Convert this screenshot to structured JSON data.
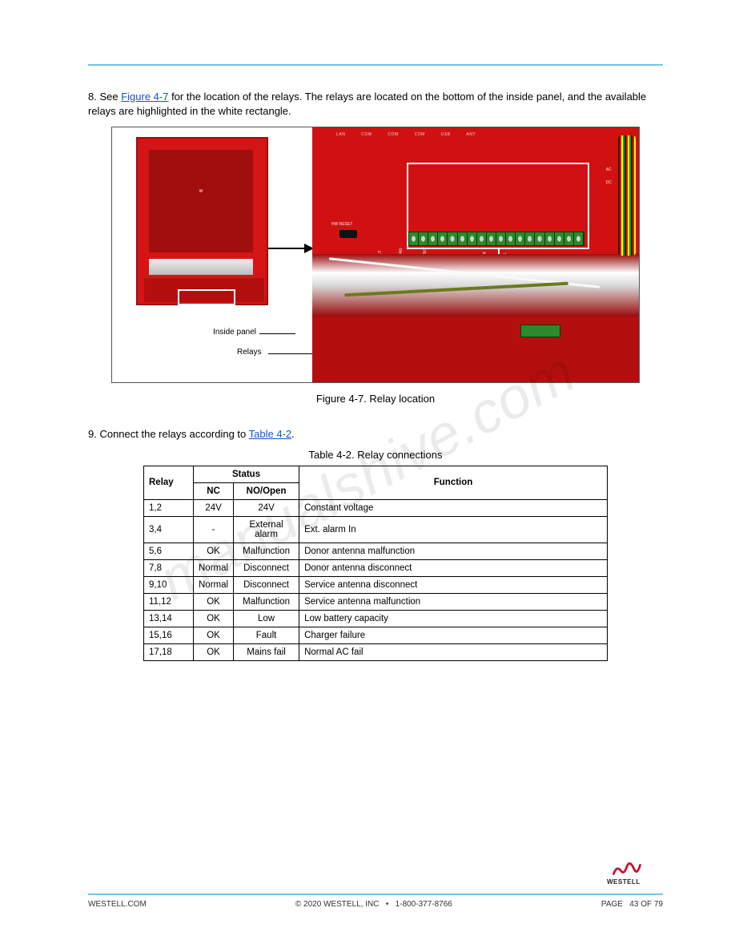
{
  "intro": {
    "pre": "8.  See  ",
    "figref": "Figure  4-7",
    "post": "  for  the  location  of  the  relays.  The  relays  are  located  on  the  bottom  of  the  inside  panel,  and  the  available  relays  are  highlighted  in  the  white  rectangle."
  },
  "annotation": {
    "inside_panel": "Inside panel",
    "relays": "Relays"
  },
  "figure": {
    "panel_top_ports": [
      "LAN",
      "COM",
      "COM",
      "COM",
      "USB",
      "ANT"
    ],
    "reset_label": "HW RESET",
    "reset_sub": "SW",
    "terminal_labels": [
      "ANT FAIL",
      "SYS FAULT",
      "DONOR FAIL",
      "DONOR OUT",
      "ANT OUT",
      "ANT OUT",
      "BATT LOW",
      "BATT FAIL",
      "AC FAIL"
    ],
    "right_col": [
      "AC",
      "DC"
    ],
    "caption": "Figure 4-7. Relay location"
  },
  "para": {
    "pre": "9.  Connect  the  relays  according  to  ",
    "tref": "Table  4-2",
    "post": "."
  },
  "table": {
    "caption": "Table 4-2. Relay connections",
    "head": {
      "relay": "Relay",
      "status_group": "Status",
      "statusA": "NC",
      "statusB": "NO/Open",
      "func": "Function"
    },
    "rows": [
      {
        "relay": "1,2",
        "statusA": "24V",
        "statusB": "24V",
        "func": "Constant voltage"
      },
      {
        "relay": "3,4",
        "statusA": "-",
        "statusB": "External alarm",
        "func": "Ext. alarm In"
      },
      {
        "relay": "5,6",
        "statusA": "OK",
        "statusB": "Malfunction",
        "func": "Donor antenna malfunction"
      },
      {
        "relay": "7,8",
        "statusA": "Normal",
        "statusB": "Disconnect",
        "func": "Donor antenna disconnect"
      },
      {
        "relay": "9,10",
        "statusA": "Normal",
        "statusB": "Disconnect",
        "func": "Service antenna disconnect"
      },
      {
        "relay": "11,12",
        "statusA": "OK",
        "statusB": "Malfunction",
        "func": "Service antenna malfunction"
      },
      {
        "relay": "13,14",
        "statusA": "OK",
        "statusB": "Low",
        "func": "Low battery capacity"
      },
      {
        "relay": "15,16",
        "statusA": "OK",
        "statusB": "Fault",
        "func": "Charger failure"
      },
      {
        "relay": "17,18",
        "statusA": "OK",
        "statusB": "Mains fail",
        "func": "Normal AC fail"
      }
    ]
  },
  "footer": {
    "left": "WESTELL.COM",
    "copyright": "© 2020 WESTELL, INC",
    "phone": "1-800-377-8766",
    "page_label": "PAGE",
    "page_num": "43 OF 79",
    "logo": "WESTELL"
  },
  "colors": {
    "rule": "#6fc5e8",
    "link": "#1155cc",
    "red_panel": "#d11111",
    "logo_red": "#c8102e"
  },
  "watermark": "manualshive.com"
}
